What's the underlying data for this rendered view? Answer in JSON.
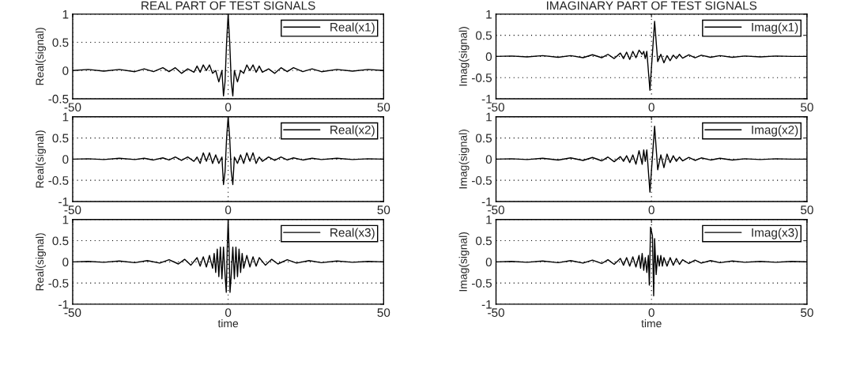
{
  "chart_data": [
    {
      "type": "line",
      "title": "REAL PART OF TEST SIGNALS",
      "ylabel": "Real(signal)",
      "xlim": [
        -50,
        50
      ],
      "xticks": [
        -50,
        0,
        50
      ],
      "ylim": [
        -0.5,
        1
      ],
      "yticks": [
        -0.5,
        0,
        0.5,
        1
      ],
      "grid": true,
      "legend": "top right",
      "series": [
        {
          "name": "Real(x1)",
          "color": "#000000",
          "x": [
            -50,
            -45,
            -40,
            -35,
            -30,
            -27,
            -24,
            -21,
            -19,
            -17,
            -15,
            -13,
            -11,
            -10,
            -9,
            -8,
            -7,
            -6,
            -5,
            -4,
            -3,
            -2,
            -1.5,
            -1,
            -0.5,
            0,
            0.5,
            1,
            1.5,
            2,
            3,
            4,
            5,
            6,
            7,
            8,
            9,
            10,
            11,
            13,
            15,
            17,
            19,
            21,
            24,
            27,
            30,
            35,
            40,
            45,
            50
          ],
          "values": [
            0,
            0.02,
            -0.01,
            0.02,
            -0.02,
            0.03,
            -0.02,
            0.05,
            -0.02,
            0.05,
            -0.05,
            0.03,
            -0.03,
            0.08,
            -0.03,
            0.1,
            0,
            0.1,
            -0.05,
            0,
            -0.2,
            0,
            -0.45,
            -0.2,
            0.5,
            1,
            0.5,
            -0.2,
            -0.45,
            0,
            -0.2,
            0,
            -0.05,
            0.1,
            0,
            0.1,
            -0.03,
            0.08,
            -0.03,
            0.03,
            -0.05,
            0.05,
            -0.02,
            0.05,
            -0.02,
            0.03,
            -0.02,
            0.02,
            -0.01,
            0.02,
            0
          ]
        }
      ]
    },
    {
      "type": "line",
      "title": "IMAGINARY PART OF TEST SIGNALS",
      "ylabel": "Imag(signal)",
      "xlim": [
        -50,
        50
      ],
      "xticks": [
        -50,
        0,
        50
      ],
      "ylim": [
        -1,
        1
      ],
      "yticks": [
        -1,
        -0.5,
        0,
        0.5,
        1
      ],
      "grid": true,
      "legend": "top right",
      "series": [
        {
          "name": "Imag(x1)",
          "color": "#000000",
          "x": [
            -50,
            -45,
            -40,
            -35,
            -30,
            -26,
            -22,
            -19,
            -16,
            -14,
            -12,
            -10,
            -9,
            -8,
            -7,
            -6,
            -5,
            -4,
            -3,
            -2.5,
            -2,
            -1.5,
            -0.5,
            1,
            2,
            3,
            4,
            5,
            6,
            7,
            8,
            9,
            10,
            12,
            14,
            16,
            19,
            22,
            26,
            30,
            35,
            40,
            45,
            50
          ],
          "values": [
            0,
            0.01,
            -0.01,
            0.02,
            -0.02,
            0.02,
            -0.03,
            0.04,
            -0.03,
            0.05,
            -0.05,
            0.08,
            -0.05,
            0.1,
            -0.07,
            0.12,
            -0.03,
            0.15,
            0.05,
            0.12,
            -0.05,
            0.12,
            -0.8,
            0.83,
            -0.12,
            0.05,
            -0.15,
            0.02,
            -0.1,
            0.03,
            -0.05,
            0.05,
            -0.04,
            0.04,
            -0.03,
            0.03,
            -0.02,
            0.02,
            -0.02,
            0.01,
            -0.01,
            0.01,
            0,
            0
          ]
        }
      ]
    },
    {
      "type": "line",
      "ylabel": "Real(signal)",
      "xlim": [
        -50,
        50
      ],
      "xticks": [
        -50,
        0,
        50
      ],
      "ylim": [
        -1,
        1
      ],
      "yticks": [
        -1,
        -0.5,
        0,
        0.5,
        1
      ],
      "grid": true,
      "legend": "top right",
      "series": [
        {
          "name": "Real(x2)",
          "color": "#000000",
          "x": [
            -50,
            -45,
            -40,
            -35,
            -30,
            -27,
            -24,
            -21,
            -19,
            -17,
            -15,
            -13,
            -11,
            -10,
            -9,
            -8,
            -7,
            -6,
            -5,
            -4,
            -3,
            -2,
            -1.5,
            -1,
            -0.5,
            0,
            0.5,
            1,
            1.5,
            2,
            3,
            4,
            5,
            6,
            7,
            8,
            9,
            10,
            11,
            13,
            15,
            17,
            19,
            21,
            24,
            27,
            30,
            35,
            40,
            45,
            50
          ],
          "values": [
            0,
            0.01,
            -0.01,
            0.02,
            -0.01,
            0.02,
            -0.02,
            0.03,
            -0.02,
            0.05,
            -0.03,
            0.05,
            -0.05,
            0.05,
            -0.1,
            0.15,
            -0.05,
            0.15,
            -0.1,
            0.1,
            -0.1,
            0.05,
            -0.6,
            -0.3,
            0.5,
            1,
            0.5,
            -0.3,
            -0.6,
            0.05,
            -0.1,
            0.1,
            -0.1,
            0.15,
            -0.05,
            0.15,
            -0.1,
            0.05,
            -0.05,
            0.05,
            -0.03,
            0.05,
            -0.02,
            0.03,
            -0.02,
            0.02,
            -0.01,
            0.02,
            -0.01,
            0.01,
            0
          ]
        }
      ]
    },
    {
      "type": "line",
      "ylabel": "Imag(signal)",
      "xlim": [
        -50,
        50
      ],
      "xticks": [
        -50,
        0,
        50
      ],
      "ylim": [
        -1,
        1
      ],
      "yticks": [
        -1,
        -0.5,
        0,
        0.5,
        1
      ],
      "grid": true,
      "legend": "top right",
      "series": [
        {
          "name": "Imag(x2)",
          "color": "#000000",
          "x": [
            -50,
            -45,
            -40,
            -35,
            -30,
            -26,
            -22,
            -19,
            -16,
            -14,
            -12,
            -10,
            -9,
            -8,
            -7,
            -6,
            -5,
            -4,
            -3,
            -2.5,
            -2,
            -1.5,
            -0.5,
            1,
            2,
            3,
            4,
            5,
            6,
            7,
            8,
            9,
            10,
            12,
            14,
            16,
            19,
            22,
            26,
            30,
            35,
            40,
            45,
            50
          ],
          "values": [
            0,
            0.01,
            -0.01,
            0.02,
            -0.02,
            0.03,
            -0.03,
            0.04,
            -0.04,
            0.05,
            -0.06,
            0.06,
            -0.05,
            0.08,
            -0.08,
            0.1,
            -0.12,
            0.2,
            -0.12,
            0.22,
            -0.05,
            0.22,
            -0.78,
            0.78,
            -0.25,
            0.1,
            -0.2,
            0.12,
            -0.08,
            0.08,
            -0.05,
            0.05,
            -0.04,
            0.04,
            -0.03,
            0.03,
            -0.02,
            0.02,
            -0.02,
            0.01,
            -0.01,
            0.01,
            0,
            0
          ]
        }
      ]
    },
    {
      "type": "line",
      "ylabel": "Real(signal)",
      "xlabel": "time",
      "xlim": [
        -50,
        50
      ],
      "xticks": [
        -50,
        0,
        50
      ],
      "ylim": [
        -1,
        1
      ],
      "yticks": [
        -1,
        -0.5,
        0,
        0.5,
        1
      ],
      "grid": true,
      "legend": "top right",
      "series": [
        {
          "name": "Real(x3)",
          "color": "#000000",
          "x": [
            -50,
            -45,
            -40,
            -35,
            -30,
            -26,
            -22,
            -19,
            -16,
            -14,
            -12,
            -10,
            -9,
            -8,
            -7,
            -6,
            -5,
            -4.5,
            -4,
            -3.5,
            -3,
            -2.5,
            -2,
            -1.5,
            -1,
            -0.6,
            -0.3,
            0,
            0.3,
            0.6,
            1,
            1.5,
            2,
            2.5,
            3,
            3.5,
            4,
            4.5,
            5,
            6,
            7,
            8,
            9,
            10,
            12,
            14,
            16,
            19,
            22,
            26,
            30,
            35,
            40,
            45,
            50
          ],
          "values": [
            0,
            0.01,
            -0.01,
            0.02,
            -0.02,
            0.03,
            -0.03,
            0.05,
            -0.05,
            0.06,
            -0.08,
            0.1,
            -0.1,
            0.12,
            -0.12,
            0.15,
            -0.15,
            0.2,
            -0.25,
            0.3,
            -0.35,
            0.35,
            -0.4,
            0.35,
            -0.3,
            -0.72,
            0.3,
            1,
            0.3,
            -0.72,
            -0.3,
            0.35,
            -0.4,
            0.35,
            -0.35,
            0.3,
            -0.25,
            0.2,
            -0.15,
            0.15,
            -0.12,
            0.12,
            -0.1,
            0.1,
            -0.08,
            0.06,
            -0.05,
            0.05,
            -0.03,
            0.03,
            -0.02,
            0.02,
            -0.01,
            0.01,
            0
          ]
        }
      ]
    },
    {
      "type": "line",
      "ylabel": "Imag(signal)",
      "xlabel": "time",
      "xlim": [
        -50,
        50
      ],
      "xticks": [
        -50,
        0,
        50
      ],
      "ylim": [
        -1,
        1
      ],
      "yticks": [
        -1,
        -0.5,
        0,
        0.5,
        1
      ],
      "grid": true,
      "legend": "top right",
      "series": [
        {
          "name": "Imag(x3)",
          "color": "#000000",
          "x": [
            -50,
            -45,
            -40,
            -35,
            -30,
            -26,
            -22,
            -19,
            -16,
            -14,
            -12,
            -10,
            -9,
            -8,
            -7,
            -6,
            -5,
            -4,
            -3.5,
            -3,
            -2.5,
            -2,
            -1.5,
            -1,
            -0.7,
            -0.3,
            0.3,
            0.7,
            1,
            1.5,
            2,
            2.5,
            3,
            3.5,
            4,
            5,
            6,
            7,
            8,
            9,
            10,
            12,
            14,
            16,
            19,
            22,
            26,
            30,
            35,
            40,
            45,
            50
          ],
          "values": [
            0,
            0.01,
            -0.01,
            0.02,
            -0.02,
            0.03,
            -0.03,
            0.04,
            -0.04,
            0.05,
            -0.06,
            0.08,
            -0.08,
            0.1,
            -0.1,
            0.12,
            -0.12,
            0.15,
            -0.15,
            0.2,
            -0.2,
            0.1,
            -0.25,
            0.15,
            -0.55,
            0.82,
            0.62,
            -0.8,
            0.55,
            -0.3,
            0.15,
            -0.1,
            0.15,
            -0.1,
            0.1,
            -0.1,
            0.1,
            -0.08,
            0.08,
            -0.06,
            0.05,
            -0.04,
            0.04,
            -0.03,
            0.03,
            -0.02,
            0.02,
            -0.01,
            0.01,
            -0.01,
            0.01,
            0
          ]
        }
      ]
    }
  ]
}
